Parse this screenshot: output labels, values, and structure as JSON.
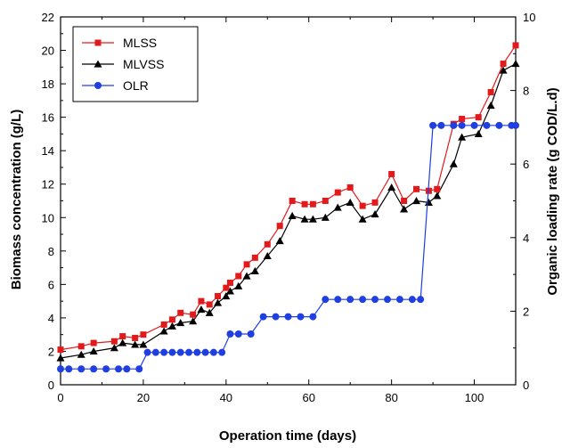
{
  "chart_data": {
    "type": "line",
    "xlabel": "Operation time (days)",
    "ylabel_left": "Biomass concentration (g/L)",
    "ylabel_right": "Organic loading rate (g COD/L.d)",
    "xlim": [
      0,
      110
    ],
    "ylim_left": [
      0,
      22
    ],
    "ylim_right": [
      0,
      10
    ],
    "x_ticks": [
      "0",
      "20",
      "40",
      "60",
      "80",
      "100"
    ],
    "y_left_ticks": [
      "0",
      "2",
      "4",
      "6",
      "8",
      "10",
      "12",
      "14",
      "16",
      "18",
      "20",
      "22"
    ],
    "y_right_ticks": [
      "0",
      "2",
      "4",
      "6",
      "8",
      "10"
    ],
    "grid": false,
    "legend_position": "top-left",
    "series": [
      {
        "name": "MLSS",
        "axis": "left",
        "color": "#e31a1c",
        "marker": "square",
        "x": [
          0,
          5,
          8,
          13,
          15,
          18,
          20,
          25,
          27,
          29,
          32,
          34,
          36,
          38,
          40,
          41,
          43,
          45,
          47,
          50,
          53,
          56,
          59,
          61,
          64,
          67,
          70,
          73,
          76,
          80,
          83,
          86,
          89,
          91,
          95,
          97,
          101,
          104,
          107,
          110
        ],
        "y": [
          2.1,
          2.3,
          2.5,
          2.6,
          2.9,
          2.8,
          3.0,
          3.6,
          3.9,
          4.3,
          4.2,
          5.0,
          4.8,
          5.3,
          5.8,
          6.1,
          6.5,
          7.2,
          7.6,
          8.4,
          9.5,
          11.0,
          10.8,
          10.8,
          11.0,
          11.5,
          11.8,
          10.7,
          10.9,
          12.6,
          11.0,
          11.7,
          11.6,
          11.7,
          15.6,
          15.9,
          16.0,
          17.5,
          19.2,
          20.3
        ]
      },
      {
        "name": "MLVSS",
        "axis": "left",
        "color": "#000000",
        "marker": "triangle",
        "x": [
          0,
          5,
          8,
          13,
          15,
          18,
          20,
          25,
          27,
          29,
          32,
          34,
          36,
          38,
          40,
          41,
          43,
          45,
          47,
          50,
          53,
          56,
          59,
          61,
          64,
          67,
          70,
          73,
          76,
          80,
          83,
          86,
          89,
          91,
          95,
          97,
          101,
          104,
          107,
          110
        ],
        "y": [
          1.6,
          1.8,
          2.0,
          2.2,
          2.5,
          2.4,
          2.4,
          3.2,
          3.5,
          3.7,
          3.8,
          4.5,
          4.3,
          4.9,
          5.3,
          5.6,
          5.9,
          6.5,
          6.8,
          7.7,
          8.6,
          10.1,
          9.9,
          9.9,
          10.0,
          10.6,
          10.9,
          9.9,
          10.2,
          11.8,
          10.5,
          11.0,
          10.9,
          11.3,
          13.2,
          14.8,
          15.0,
          16.7,
          18.8,
          19.2
        ]
      },
      {
        "name": "OLR",
        "axis": "right",
        "color": "#1f3fe0",
        "marker": "circle",
        "x": [
          0,
          2,
          5,
          8,
          11,
          14,
          16,
          19,
          21,
          23,
          25,
          27,
          29,
          31,
          33,
          35,
          37,
          39,
          41,
          43,
          46,
          49,
          52,
          55,
          58,
          61,
          64,
          67,
          70,
          73,
          76,
          79,
          82,
          85,
          87,
          90,
          92,
          95,
          97,
          100,
          103,
          106,
          109,
          110
        ],
        "y": [
          0.43,
          0.43,
          0.43,
          0.43,
          0.43,
          0.43,
          0.43,
          0.43,
          0.88,
          0.88,
          0.88,
          0.88,
          0.88,
          0.88,
          0.88,
          0.88,
          0.88,
          0.88,
          1.38,
          1.38,
          1.38,
          1.85,
          1.85,
          1.85,
          1.85,
          1.85,
          2.32,
          2.32,
          2.32,
          2.32,
          2.32,
          2.32,
          2.32,
          2.32,
          2.32,
          7.05,
          7.05,
          7.05,
          7.05,
          7.05,
          7.05,
          7.05,
          7.05,
          7.05
        ]
      }
    ]
  }
}
